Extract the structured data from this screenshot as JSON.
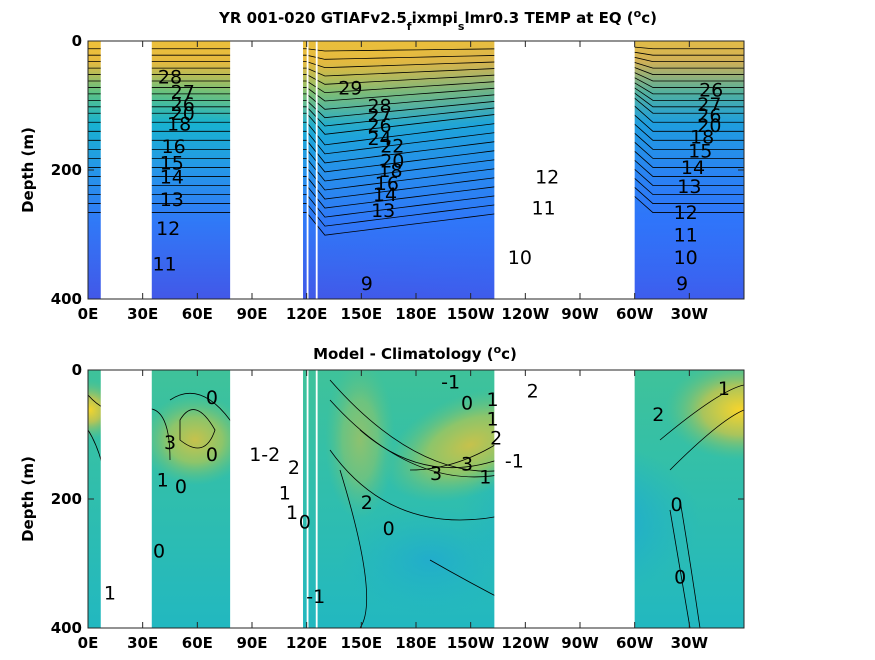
{
  "chart_data": [
    {
      "type": "heatmap",
      "title": "YR 001-020 GTIAFv2.5",
      "title_sub1": "f",
      "title_mid": "ixmpi",
      "title_sub2": "s",
      "title_end": "lmr0.3 TEMP at EQ (",
      "title_sup": "o",
      "title_close": "c)",
      "ylabel": "Depth (m)",
      "xlabel": "",
      "xticks": [
        "0E",
        "30E",
        "60E",
        "90E",
        "120E",
        "150E",
        "180E",
        "150W",
        "120W",
        "90W",
        "60W",
        "30W"
      ],
      "xtick_lon": [
        0,
        30,
        60,
        90,
        120,
        150,
        180,
        210,
        240,
        270,
        300,
        330
      ],
      "yticks": [
        "0",
        "200",
        "400"
      ],
      "yticks_val": [
        0,
        200,
        400
      ],
      "xlim": [
        0,
        360
      ],
      "ylim": [
        0,
        400
      ],
      "contour_labels": [
        {
          "text": "28",
          "lon": 45,
          "depth": 55
        },
        {
          "text": "27",
          "lon": 52,
          "depth": 78
        },
        {
          "text": "26",
          "lon": 52,
          "depth": 98
        },
        {
          "text": "20",
          "lon": 52,
          "depth": 112
        },
        {
          "text": "18",
          "lon": 50,
          "depth": 128
        },
        {
          "text": "16",
          "lon": 47,
          "depth": 163
        },
        {
          "text": "15",
          "lon": 46,
          "depth": 188
        },
        {
          "text": "14",
          "lon": 46,
          "depth": 210
        },
        {
          "text": "13",
          "lon": 46,
          "depth": 245
        },
        {
          "text": "12",
          "lon": 44,
          "depth": 290
        },
        {
          "text": "11",
          "lon": 42,
          "depth": 345
        },
        {
          "text": "29",
          "lon": 144,
          "depth": 72
        },
        {
          "text": "28",
          "lon": 160,
          "depth": 100
        },
        {
          "text": "27",
          "lon": 160,
          "depth": 115
        },
        {
          "text": "26",
          "lon": 160,
          "depth": 130
        },
        {
          "text": "24",
          "lon": 160,
          "depth": 150
        },
        {
          "text": "22",
          "lon": 167,
          "depth": 162
        },
        {
          "text": "20",
          "lon": 167,
          "depth": 185
        },
        {
          "text": "18",
          "lon": 166,
          "depth": 200
        },
        {
          "text": "16",
          "lon": 164,
          "depth": 220
        },
        {
          "text": "14",
          "lon": 163,
          "depth": 237
        },
        {
          "text": "13",
          "lon": 162,
          "depth": 262
        },
        {
          "text": "9",
          "lon": 153,
          "depth": 375
        },
        {
          "text": "12",
          "lon": 252,
          "depth": 210
        },
        {
          "text": "11",
          "lon": 250,
          "depth": 258
        },
        {
          "text": "10",
          "lon": 237,
          "depth": 335
        },
        {
          "text": "26",
          "lon": 342,
          "depth": 75
        },
        {
          "text": "27",
          "lon": 341,
          "depth": 98
        },
        {
          "text": "26",
          "lon": 341,
          "depth": 115
        },
        {
          "text": "20",
          "lon": 341,
          "depth": 130
        },
        {
          "text": "18",
          "lon": 337,
          "depth": 148
        },
        {
          "text": "15",
          "lon": 336,
          "depth": 170
        },
        {
          "text": "14",
          "lon": 332,
          "depth": 195
        },
        {
          "text": "13",
          "lon": 330,
          "depth": 225
        },
        {
          "text": "12",
          "lon": 328,
          "depth": 265
        },
        {
          "text": "11",
          "lon": 328,
          "depth": 300
        },
        {
          "text": "10",
          "lon": 328,
          "depth": 335
        },
        {
          "text": "9",
          "lon": 326,
          "depth": 375
        }
      ],
      "masked_lon_ranges": [
        [
          7,
          35
        ],
        [
          78,
          118
        ],
        [
          120,
          121
        ],
        [
          125,
          126
        ],
        [
          223,
          300
        ]
      ],
      "colormap": [
        "#3e26a8",
        "#4743e2",
        "#2e6efe",
        "#2a9ce3",
        "#10baca",
        "#3ac59a",
        "#89c66a",
        "#d2bb44",
        "#fac638",
        "#f9fb15"
      ],
      "value_range": [
        5,
        30
      ]
    },
    {
      "type": "heatmap",
      "title": "Model - Climatology (",
      "title_sup": "o",
      "title_close": "c)",
      "ylabel": "Depth (m)",
      "xlabel": "",
      "xticks": [
        "0E",
        "30E",
        "60E",
        "90E",
        "120E",
        "150E",
        "180E",
        "150W",
        "120W",
        "90W",
        "60W",
        "30W"
      ],
      "xtick_lon": [
        0,
        30,
        60,
        90,
        120,
        150,
        180,
        210,
        240,
        270,
        300,
        330
      ],
      "yticks": [
        "0",
        "200",
        "400"
      ],
      "yticks_val": [
        0,
        200,
        400
      ],
      "xlim": [
        0,
        360
      ],
      "ylim": [
        0,
        400
      ],
      "contour_labels": [
        {
          "text": "0",
          "lon": 68,
          "depth": 42
        },
        {
          "text": "3",
          "lon": 45,
          "depth": 112
        },
        {
          "text": "0",
          "lon": 68,
          "depth": 130
        },
        {
          "text": "1",
          "lon": 41,
          "depth": 170
        },
        {
          "text": "0",
          "lon": 51,
          "depth": 180
        },
        {
          "text": "0",
          "lon": 39,
          "depth": 280
        },
        {
          "text": "-1",
          "lon": 199,
          "depth": 18
        },
        {
          "text": "0",
          "lon": 208,
          "depth": 50
        },
        {
          "text": "1",
          "lon": 222,
          "depth": 45
        },
        {
          "text": "2",
          "lon": 244,
          "depth": 32
        },
        {
          "text": "-1",
          "lon": 234,
          "depth": 140
        },
        {
          "text": "1",
          "lon": 222,
          "depth": 75
        },
        {
          "text": "2",
          "lon": 224,
          "depth": 105
        },
        {
          "text": "3",
          "lon": 191,
          "depth": 160
        },
        {
          "text": "3",
          "lon": 208,
          "depth": 145
        },
        {
          "text": "1",
          "lon": 218,
          "depth": 165
        },
        {
          "text": "2",
          "lon": 153,
          "depth": 205
        },
        {
          "text": "0",
          "lon": 165,
          "depth": 245
        },
        {
          "text": "1-2",
          "lon": 97,
          "depth": 130
        },
        {
          "text": "2",
          "lon": 113,
          "depth": 150
        },
        {
          "text": "1",
          "lon": 108,
          "depth": 190
        },
        {
          "text": "1",
          "lon": 112,
          "depth": 220
        },
        {
          "text": "0",
          "lon": 119,
          "depth": 235
        },
        {
          "text": "-1",
          "lon": 125,
          "depth": 350
        },
        {
          "text": "1",
          "lon": 12,
          "depth": 345
        },
        {
          "text": "1",
          "lon": 349,
          "depth": 28
        },
        {
          "text": "2",
          "lon": 313,
          "depth": 68
        },
        {
          "text": "0",
          "lon": 323,
          "depth": 208
        },
        {
          "text": "0",
          "lon": 325,
          "depth": 320
        }
      ],
      "masked_lon_ranges": [
        [
          7,
          35
        ],
        [
          78,
          118
        ],
        [
          120,
          121
        ],
        [
          125,
          126
        ],
        [
          223,
          300
        ]
      ],
      "colormap": [
        "#3e26a8",
        "#2e6efe",
        "#10baca",
        "#3ac59a",
        "#89c66a",
        "#d2bb44",
        "#fac638",
        "#f9fb15"
      ],
      "value_range": [
        -4,
        4
      ]
    }
  ]
}
